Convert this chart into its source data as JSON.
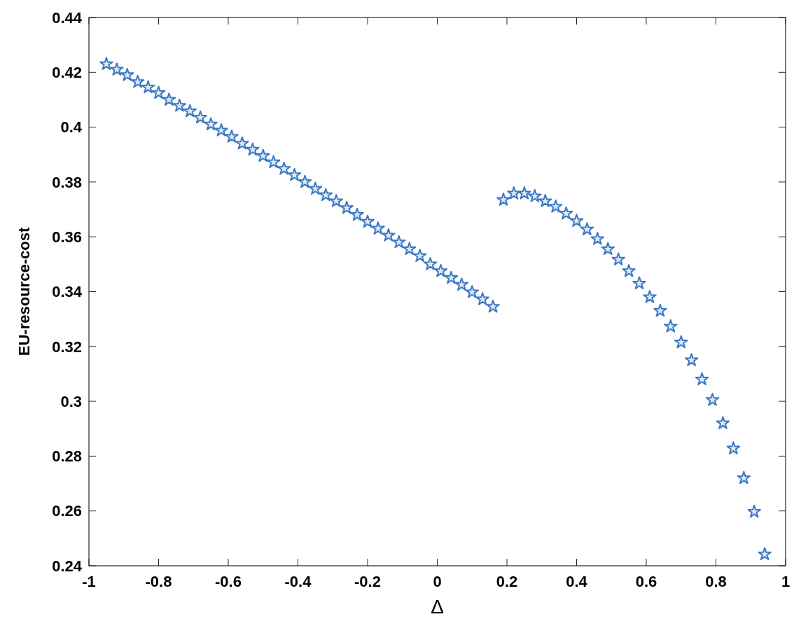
{
  "chart_data": {
    "type": "scatter",
    "xlabel": "Δ",
    "ylabel": "EU-resource-cost",
    "marker": "star",
    "grid": false,
    "xlim": [
      -1,
      1
    ],
    "xticks": [
      -1,
      -0.8,
      -0.6,
      -0.4,
      -0.2,
      0,
      0.2,
      0.4,
      0.6,
      0.8,
      1
    ],
    "ylim": [
      0.24,
      0.44
    ],
    "yticks": [
      0.24,
      0.26,
      0.28,
      0.3,
      0.32,
      0.34,
      0.36,
      0.38,
      0.4,
      0.42,
      0.44
    ],
    "series": [
      {
        "color": "#3a78c4",
        "x": [
          -0.95,
          -0.92,
          -0.89,
          -0.86,
          -0.83,
          -0.8,
          -0.77,
          -0.74,
          -0.71,
          -0.68,
          -0.65,
          -0.62,
          -0.59,
          -0.56,
          -0.53,
          -0.5,
          -0.47,
          -0.44,
          -0.41,
          -0.38,
          -0.35,
          -0.32,
          -0.29,
          -0.26,
          -0.23,
          -0.2,
          -0.17,
          -0.14,
          -0.11,
          -0.08,
          -0.05,
          -0.02,
          0.01,
          0.04,
          0.07,
          0.1,
          0.13,
          0.16
        ],
        "values": [
          0.423,
          0.421,
          0.419,
          0.4165,
          0.4145,
          0.4125,
          0.41,
          0.4078,
          0.4058,
          0.4035,
          0.401,
          0.3988,
          0.3965,
          0.394,
          0.3918,
          0.3895,
          0.3872,
          0.3848,
          0.3825,
          0.38,
          0.3775,
          0.3752,
          0.373,
          0.3705,
          0.368,
          0.3655,
          0.363,
          0.3605,
          0.358,
          0.3555,
          0.353,
          0.35,
          0.3475,
          0.345,
          0.3425,
          0.3398,
          0.3372,
          0.3345
        ]
      },
      {
        "color": "#3a78c4",
        "x": [
          0.19,
          0.22,
          0.25,
          0.28,
          0.31,
          0.34,
          0.37,
          0.4,
          0.43,
          0.46,
          0.49,
          0.52,
          0.55,
          0.58,
          0.61,
          0.64,
          0.67,
          0.7,
          0.73,
          0.76,
          0.79,
          0.82,
          0.85,
          0.88,
          0.91,
          0.94
        ],
        "values": [
          0.3735,
          0.3758,
          0.3758,
          0.3748,
          0.373,
          0.371,
          0.3685,
          0.3658,
          0.3627,
          0.3592,
          0.3555,
          0.3517,
          0.3475,
          0.343,
          0.338,
          0.333,
          0.3273,
          0.3215,
          0.315,
          0.308,
          0.3005,
          0.292,
          0.2828,
          0.272,
          0.2597,
          0.2442
        ]
      }
    ]
  }
}
